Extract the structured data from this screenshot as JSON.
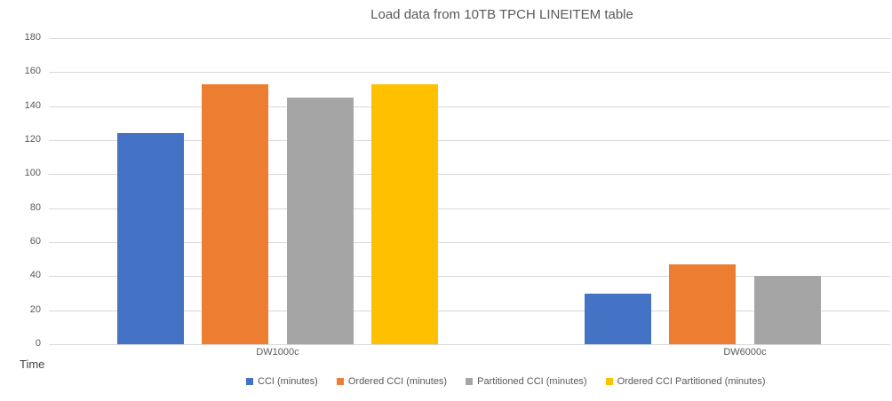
{
  "chart_data": {
    "type": "bar",
    "title": "Load data from 10TB TPCH LINEITEM table",
    "axis_title": "Time",
    "categories": [
      "DW1000c",
      "DW6000c"
    ],
    "series": [
      {
        "name": "CCI (minutes)",
        "color": "#4472C4",
        "values": [
          124,
          30
        ]
      },
      {
        "name": "Ordered CCI (minutes)",
        "color": "#ED7D31",
        "values": [
          153,
          47
        ]
      },
      {
        "name": "Partitioned CCI (minutes)",
        "color": "#A5A5A5",
        "values": [
          145,
          40
        ]
      },
      {
        "name": "Ordered CCI Partitioned (minutes)",
        "color": "#FFC000",
        "values": [
          153,
          null
        ]
      }
    ],
    "ylim": [
      0,
      180
    ],
    "yticks": [
      0,
      20,
      40,
      60,
      80,
      100,
      120,
      140,
      160,
      180
    ],
    "grid": "horizontal",
    "legend_position": "bottom",
    "colors": {
      "gridline": "#D9D9D9",
      "tick_text": "#595959",
      "title_text": "#595959"
    }
  }
}
